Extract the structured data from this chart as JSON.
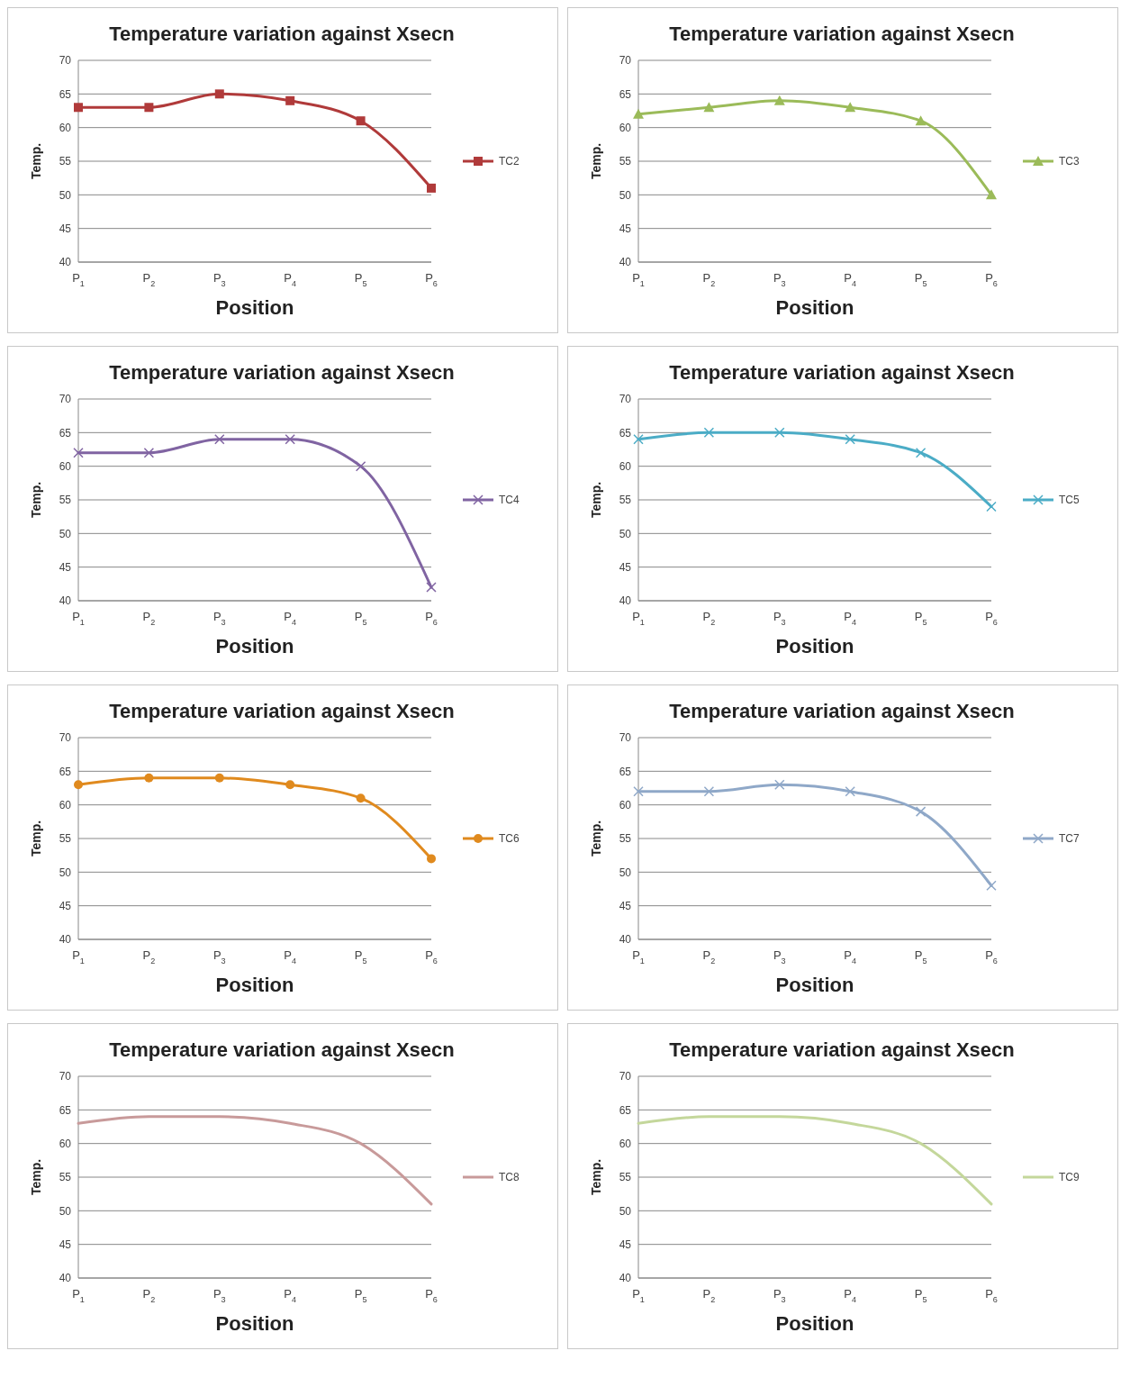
{
  "chart_data": [
    {
      "type": "line",
      "title": "Temperature variation against Xsecn",
      "xlabel": "Position",
      "ylabel": "Temp.",
      "categories": [
        "P$_{1}$",
        "P$_{2}$",
        "P$_{3}$",
        "P$_{4}$",
        "P$_{5}$",
        "P$_{6}$"
      ],
      "series": [
        {
          "name": "TC2",
          "color": "#b03a3a",
          "values": [
            63,
            63,
            65,
            64,
            61,
            51
          ]
        }
      ],
      "ylim": [
        40,
        70
      ],
      "yticks": [
        40,
        45,
        50,
        55,
        60,
        65,
        70
      ],
      "grid": "y",
      "legend": "right",
      "marker": "square"
    },
    {
      "type": "line",
      "title": "Temperature variation against Xsecn",
      "xlabel": "Position",
      "ylabel": "Temp.",
      "categories": [
        "P$_{1}$",
        "P$_{2}$",
        "P$_{3}$",
        "P$_{4}$",
        "P$_{5}$",
        "P$_{6}$"
      ],
      "series": [
        {
          "name": "TC3",
          "color": "#9bbb59",
          "values": [
            62,
            63,
            64,
            63,
            61,
            50
          ]
        }
      ],
      "ylim": [
        40,
        70
      ],
      "yticks": [
        40,
        45,
        50,
        55,
        60,
        65,
        70
      ],
      "grid": "y",
      "legend": "right",
      "marker": "triangle"
    },
    {
      "type": "line",
      "title": "Temperature variation against Xsecn",
      "xlabel": "Position",
      "ylabel": "Temp.",
      "categories": [
        "P$_{1}$",
        "P$_{2}$",
        "P$_{3}$",
        "P$_{4}$",
        "P$_{5}$",
        "P$_{6}$"
      ],
      "series": [
        {
          "name": "TC4",
          "color": "#8064a2",
          "values": [
            62,
            62,
            64,
            64,
            60,
            42
          ]
        }
      ],
      "ylim": [
        40,
        70
      ],
      "yticks": [
        40,
        45,
        50,
        55,
        60,
        65,
        70
      ],
      "grid": "y",
      "legend": "right",
      "marker": "cross"
    },
    {
      "type": "line",
      "title": "Temperature variation against Xsecn",
      "xlabel": "Position",
      "ylabel": "Temp.",
      "categories": [
        "P$_{1}$",
        "P$_{2}$",
        "P$_{3}$",
        "P$_{4}$",
        "P$_{5}$",
        "P$_{6}$"
      ],
      "series": [
        {
          "name": "TC5",
          "color": "#4bacc6",
          "values": [
            64,
            65,
            65,
            64,
            62,
            54
          ]
        }
      ],
      "ylim": [
        40,
        70
      ],
      "yticks": [
        40,
        45,
        50,
        55,
        60,
        65,
        70
      ],
      "grid": "y",
      "legend": "right",
      "marker": "cross"
    },
    {
      "type": "line",
      "title": "Temperature variation against Xsecn",
      "xlabel": "Position",
      "ylabel": "Temp.",
      "categories": [
        "P$_{1}$",
        "P$_{2}$",
        "P$_{3}$",
        "P$_{4}$",
        "P$_{5}$",
        "P$_{6}$"
      ],
      "series": [
        {
          "name": "TC6",
          "color": "#e08a1e",
          "values": [
            63,
            64,
            64,
            63,
            61,
            52
          ]
        }
      ],
      "ylim": [
        40,
        70
      ],
      "yticks": [
        40,
        45,
        50,
        55,
        60,
        65,
        70
      ],
      "grid": "y",
      "legend": "right",
      "marker": "circle"
    },
    {
      "type": "line",
      "title": "Temperature variation against Xsecn",
      "xlabel": "Position",
      "ylabel": "Temp.",
      "categories": [
        "P$_{1}$",
        "P$_{2}$",
        "P$_{3}$",
        "P$_{4}$",
        "P$_{5}$",
        "P$_{6}$"
      ],
      "series": [
        {
          "name": "TC7",
          "color": "#8fa8c8",
          "values": [
            62,
            62,
            63,
            62,
            59,
            48
          ]
        }
      ],
      "ylim": [
        40,
        70
      ],
      "yticks": [
        40,
        45,
        50,
        55,
        60,
        65,
        70
      ],
      "grid": "y",
      "legend": "right",
      "marker": "cross"
    },
    {
      "type": "line",
      "title": "Temperature variation against Xsecn",
      "xlabel": "Position",
      "ylabel": "Temp.",
      "categories": [
        "P$_{1}$",
        "P$_{2}$",
        "P$_{3}$",
        "P$_{4}$",
        "P$_{5}$",
        "P$_{6}$"
      ],
      "series": [
        {
          "name": "TC8",
          "color": "#c89a9a",
          "values": [
            63,
            64,
            64,
            63,
            60,
            51
          ]
        }
      ],
      "ylim": [
        40,
        70
      ],
      "yticks": [
        40,
        45,
        50,
        55,
        60,
        65,
        70
      ],
      "grid": "y",
      "legend": "right"
    },
    {
      "type": "line",
      "title": "Temperature variation against Xsecn",
      "xlabel": "Position",
      "ylabel": "Temp.",
      "categories": [
        "P$_{1}$",
        "P$_{2}$",
        "P$_{3}$",
        "P$_{4}$",
        "P$_{5}$",
        "P$_{6}$"
      ],
      "series": [
        {
          "name": "TC9",
          "color": "#c4d79b",
          "values": [
            63,
            64,
            64,
            63,
            60,
            51
          ]
        }
      ],
      "ylim": [
        40,
        70
      ],
      "yticks": [
        40,
        45,
        50,
        55,
        60,
        65,
        70
      ],
      "grid": "y",
      "legend": "right"
    }
  ]
}
